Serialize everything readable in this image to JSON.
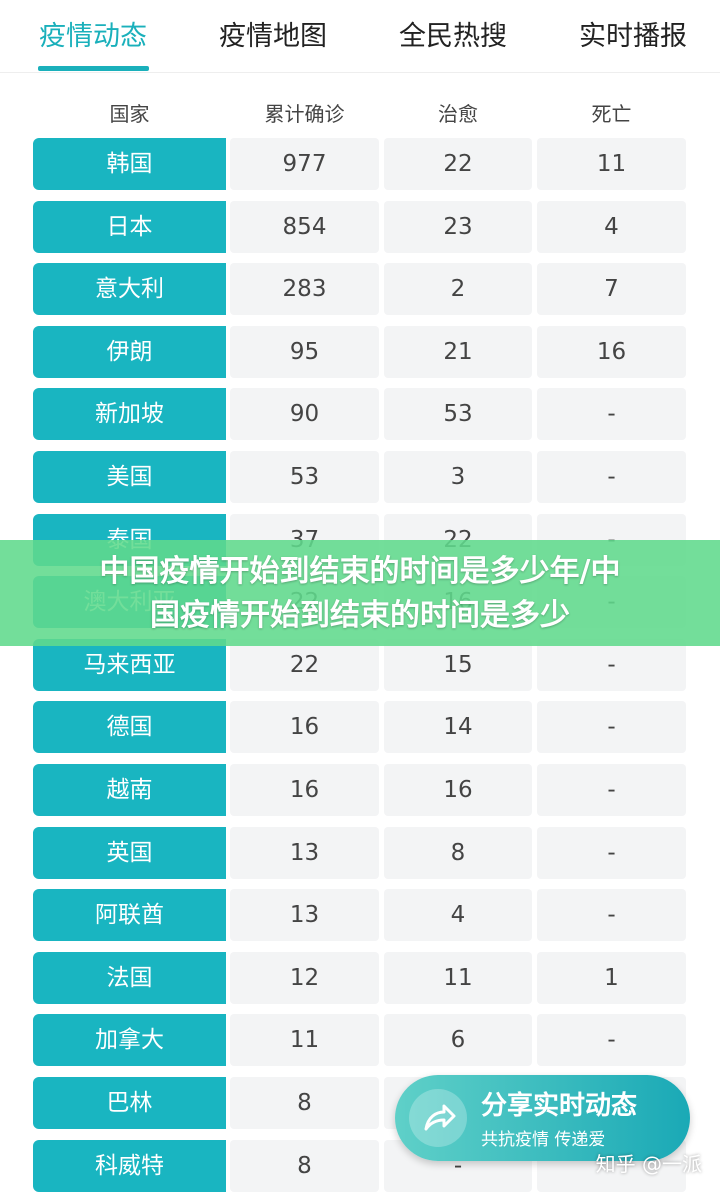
{
  "tabs": [
    "疫情动态",
    "疫情地图",
    "全民热搜",
    "实时播报"
  ],
  "table": {
    "header": [
      "国家",
      "累计确诊",
      "治愈",
      "死亡"
    ],
    "rows": [
      [
        "韩国",
        "977",
        "22",
        "11"
      ],
      [
        "日本",
        "854",
        "23",
        "4"
      ],
      [
        "意大利",
        "283",
        "2",
        "7"
      ],
      [
        "伊朗",
        "95",
        "21",
        "16"
      ],
      [
        "新加坡",
        "90",
        "53",
        "-"
      ],
      [
        "美国",
        "53",
        "3",
        "-"
      ],
      [
        "泰国",
        "37",
        "22",
        "-"
      ],
      [
        "澳大利亚",
        "22",
        "16",
        "-"
      ],
      [
        "马来西亚",
        "22",
        "15",
        "-"
      ],
      [
        "德国",
        "16",
        "14",
        "-"
      ],
      [
        "越南",
        "16",
        "16",
        "-"
      ],
      [
        "英国",
        "13",
        "8",
        "-"
      ],
      [
        "阿联酋",
        "13",
        "4",
        "-"
      ],
      [
        "法国",
        "12",
        "11",
        "1"
      ],
      [
        "加拿大",
        "11",
        "6",
        "-"
      ],
      [
        "巴林",
        "8"
      ],
      [
        "科威特",
        "8",
        "-"
      ]
    ]
  },
  "banner": {
    "line1": "中国疫情开始到结束的时间是多少年/中",
    "line2": "国疫情开始到结束的时间是多少"
  },
  "share": {
    "title": "分享实时动态",
    "subtitle": "共抗疫情 传递爱"
  },
  "watermark": "知乎 @一派"
}
